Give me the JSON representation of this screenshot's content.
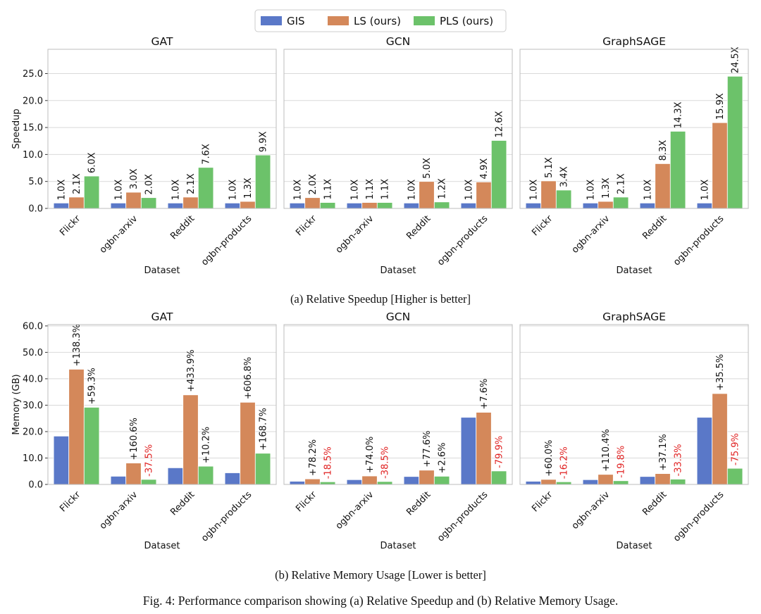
{
  "legend": [
    {
      "name": "GIS",
      "color": "#5a78c8"
    },
    {
      "name": "LS (ours)",
      "color": "#d4885a"
    },
    {
      "name": "PLS (ours)",
      "color": "#6cc26a"
    }
  ],
  "colors": {
    "GIS": "#5a78c8",
    "LS": "#d4885a",
    "PLS": "#6cc26a",
    "negative_label": "#e02020",
    "grid": "#d9d9d9"
  },
  "captions": {
    "a": "(a) Relative Speedup [Higher is better]",
    "b": "(b) Relative Memory Usage [Lower is better]",
    "figure": "Fig. 4: Performance comparison showing (a) Relative Speedup and (b) Relative Memory Usage."
  },
  "chart_data": [
    {
      "type": "bar",
      "title": "GAT",
      "xlabel": "Dataset",
      "ylabel": "Speedup",
      "ylim": [
        0,
        29.5
      ],
      "yticks": [
        "0.0",
        "5.0",
        "10.0",
        "15.0",
        "20.0",
        "25.0"
      ],
      "grid": true,
      "categories": [
        "Flickr",
        "ogbn-arxiv",
        "Reddit",
        "ogbn-products"
      ],
      "series": [
        {
          "name": "GIS",
          "values": [
            1.0,
            1.0,
            1.0,
            1.0
          ],
          "labels": [
            "1.0X",
            "1.0X",
            "1.0X",
            "1.0X"
          ]
        },
        {
          "name": "LS (ours)",
          "values": [
            2.1,
            3.0,
            2.1,
            1.3
          ],
          "labels": [
            "2.1X",
            "3.0X",
            "2.1X",
            "1.3X"
          ]
        },
        {
          "name": "PLS (ours)",
          "values": [
            6.0,
            2.0,
            7.6,
            9.9
          ],
          "labels": [
            "6.0X",
            "2.0X",
            "7.6X",
            "9.9X"
          ]
        }
      ]
    },
    {
      "type": "bar",
      "title": "GCN",
      "xlabel": "Dataset",
      "ylabel": "",
      "ylim": [
        0,
        29.5
      ],
      "yticks": [],
      "grid": true,
      "categories": [
        "Flickr",
        "ogbn-arxiv",
        "Reddit",
        "ogbn-products"
      ],
      "series": [
        {
          "name": "GIS",
          "values": [
            1.0,
            1.0,
            1.0,
            1.0
          ],
          "labels": [
            "1.0X",
            "1.0X",
            "1.0X",
            "1.0X"
          ]
        },
        {
          "name": "LS (ours)",
          "values": [
            2.0,
            1.1,
            5.0,
            4.9
          ],
          "labels": [
            "2.0X",
            "1.1X",
            "5.0X",
            "4.9X"
          ]
        },
        {
          "name": "PLS (ours)",
          "values": [
            1.1,
            1.1,
            1.2,
            12.6
          ],
          "labels": [
            "1.1X",
            "1.1X",
            "1.2X",
            "12.6X"
          ]
        }
      ]
    },
    {
      "type": "bar",
      "title": "GraphSAGE",
      "xlabel": "Dataset",
      "ylabel": "",
      "ylim": [
        0,
        29.5
      ],
      "yticks": [],
      "grid": true,
      "categories": [
        "Flickr",
        "ogbn-arxiv",
        "Reddit",
        "ogbn-products"
      ],
      "series": [
        {
          "name": "GIS",
          "values": [
            1.0,
            1.0,
            1.0,
            1.0
          ],
          "labels": [
            "1.0X",
            "1.0X",
            "1.0X",
            "1.0X"
          ]
        },
        {
          "name": "LS (ours)",
          "values": [
            5.1,
            1.3,
            8.3,
            15.9
          ],
          "labels": [
            "5.1X",
            "1.3X",
            "8.3X",
            "15.9X"
          ]
        },
        {
          "name": "PLS (ours)",
          "values": [
            3.4,
            2.1,
            14.3,
            24.5
          ],
          "labels": [
            "3.4X",
            "2.1X",
            "14.3X",
            "24.5X"
          ]
        }
      ]
    },
    {
      "type": "bar",
      "title": "GAT",
      "xlabel": "Dataset",
      "ylabel": "Memory (GB)",
      "ylim": [
        0,
        60.5
      ],
      "yticks": [
        "0.0",
        "10.0",
        "20.0",
        "30.0",
        "40.0",
        "50.0",
        "60.0"
      ],
      "grid": true,
      "categories": [
        "Flickr",
        "ogbn-arxiv",
        "Reddit",
        "ogbn-products"
      ],
      "series": [
        {
          "name": "GIS",
          "values": [
            18.3,
            3.1,
            6.3,
            4.4
          ],
          "labels": [
            "",
            "",
            "",
            ""
          ]
        },
        {
          "name": "LS (ours)",
          "values": [
            43.6,
            8.1,
            33.9,
            31.1
          ],
          "labels": [
            "+138.3%",
            "+160.6%",
            "+433.9%",
            "+606.8%"
          ]
        },
        {
          "name": "PLS (ours)",
          "values": [
            29.2,
            1.9,
            6.9,
            11.8
          ],
          "labels": [
            "+59.3%",
            "-37.5%",
            "+10.2%",
            "+168.7%"
          ]
        }
      ]
    },
    {
      "type": "bar",
      "title": "GCN",
      "xlabel": "Dataset",
      "ylabel": "",
      "ylim": [
        0,
        60.5
      ],
      "yticks": [],
      "grid": true,
      "categories": [
        "Flickr",
        "ogbn-arxiv",
        "Reddit",
        "ogbn-products"
      ],
      "series": [
        {
          "name": "GIS",
          "values": [
            1.2,
            1.8,
            3.0,
            25.4
          ],
          "labels": [
            "",
            "",
            "",
            ""
          ]
        },
        {
          "name": "LS (ours)",
          "values": [
            2.1,
            3.2,
            5.4,
            27.3
          ],
          "labels": [
            "+78.2%",
            "+74.0%",
            "+77.6%",
            "+7.6%"
          ]
        },
        {
          "name": "PLS (ours)",
          "values": [
            1.0,
            1.1,
            3.1,
            5.1
          ],
          "labels": [
            "-18.5%",
            "-38.5%",
            "+2.6%",
            "-79.9%"
          ]
        }
      ]
    },
    {
      "type": "bar",
      "title": "GraphSAGE",
      "xlabel": "Dataset",
      "ylabel": "",
      "ylim": [
        0,
        60.5
      ],
      "yticks": [],
      "grid": true,
      "categories": [
        "Flickr",
        "ogbn-arxiv",
        "Reddit",
        "ogbn-products"
      ],
      "series": [
        {
          "name": "GIS",
          "values": [
            1.2,
            1.8,
            3.0,
            25.4
          ],
          "labels": [
            "",
            "",
            "",
            ""
          ]
        },
        {
          "name": "LS (ours)",
          "values": [
            1.9,
            3.8,
            4.1,
            34.4
          ],
          "labels": [
            "+60.0%",
            "+110.4%",
            "+37.1%",
            "+35.5%"
          ]
        },
        {
          "name": "PLS (ours)",
          "values": [
            1.0,
            1.4,
            2.0,
            6.1
          ],
          "labels": [
            "-16.2%",
            "-19.8%",
            "-33.3%",
            "-75.9%"
          ]
        }
      ]
    }
  ]
}
